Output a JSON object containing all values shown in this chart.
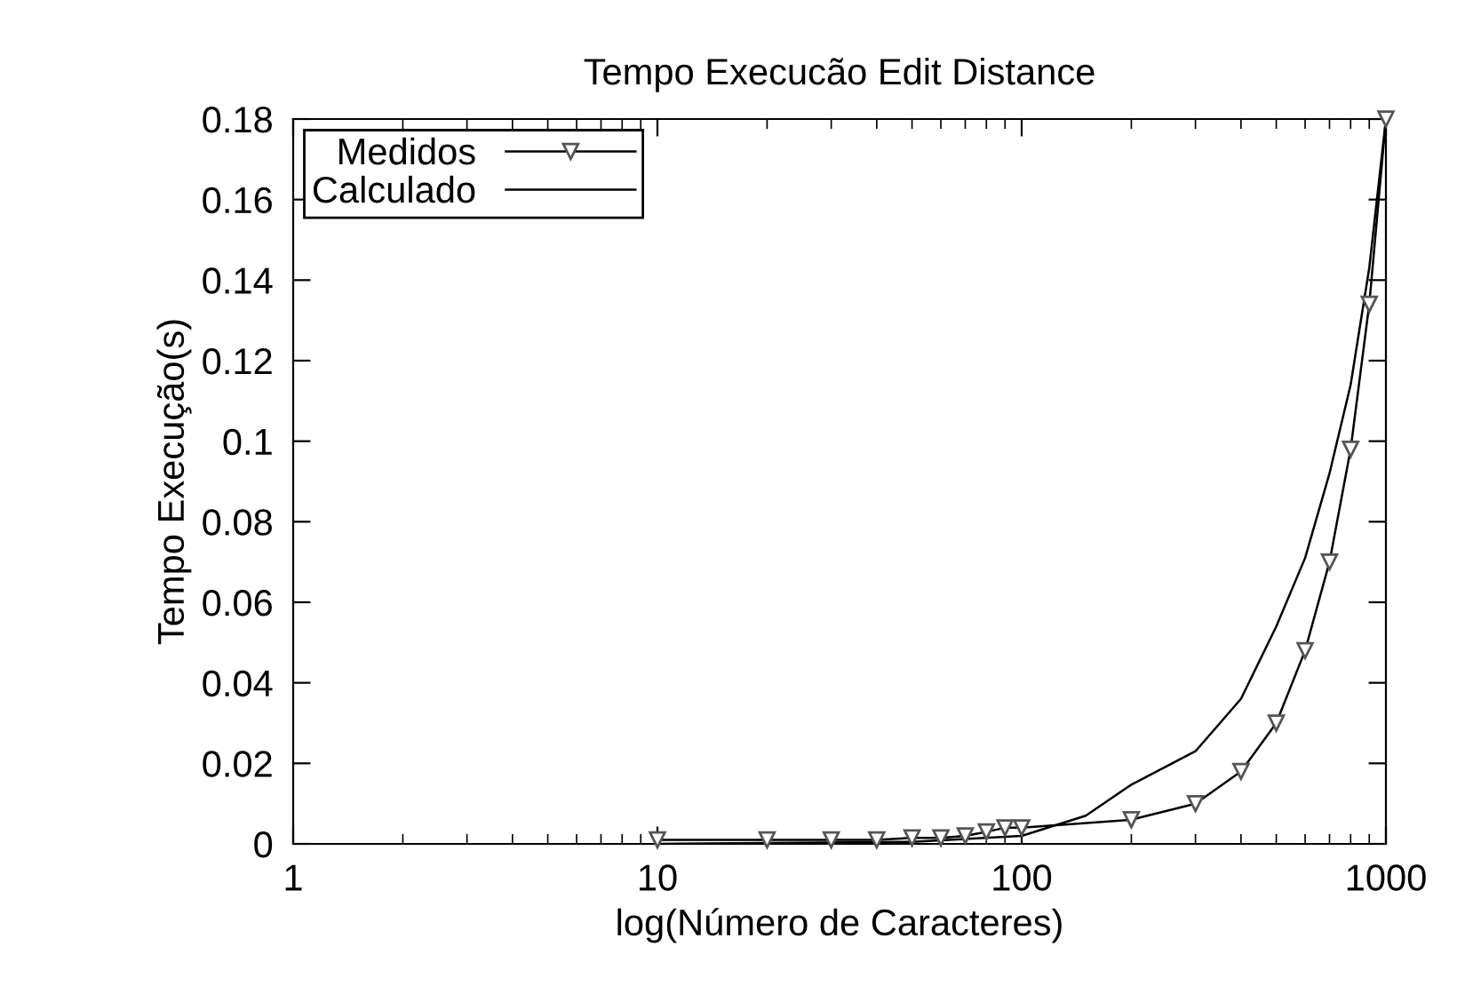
{
  "chart_data": {
    "type": "line",
    "title": "Tempo Execucão Edit Distance",
    "xlabel": "log(Número de Caracteres)",
    "ylabel": "Tempo Execução(s)",
    "log": "x",
    "xlim": [
      1,
      1000
    ],
    "xticks": [
      1,
      10,
      100,
      1000
    ],
    "ylim": [
      0,
      0.18
    ],
    "yticks": [
      0,
      0.02,
      0.04,
      0.06,
      0.08,
      0.1,
      0.12,
      0.14,
      0.16,
      0.18
    ],
    "grid": false,
    "legend": "top left",
    "series": [
      {
        "name": "Medidos",
        "color": "#000000",
        "marker": "triangle",
        "x": [
          10,
          20,
          30,
          40,
          50,
          60,
          70,
          80,
          90,
          100,
          200,
          300,
          400,
          500,
          600,
          700,
          800,
          900,
          1000
        ],
        "values": [
          0.001,
          0.001,
          0.001,
          0.001,
          0.0015,
          0.0015,
          0.002,
          0.003,
          0.004,
          0.004,
          0.006,
          0.01,
          0.018,
          0.03,
          0.048,
          0.07,
          0.098,
          0.134,
          0.18
        ]
      },
      {
        "name": "Calculado",
        "color": "#000000",
        "marker": "none",
        "x": [
          10,
          50,
          100,
          150,
          200,
          300,
          400,
          500,
          600,
          700,
          800,
          900,
          1000
        ],
        "values": [
          0.0,
          0.0005,
          0.002,
          0.007,
          0.0147,
          0.023,
          0.036,
          0.054,
          0.071,
          0.092,
          0.114,
          0.143,
          0.18
        ]
      }
    ]
  }
}
